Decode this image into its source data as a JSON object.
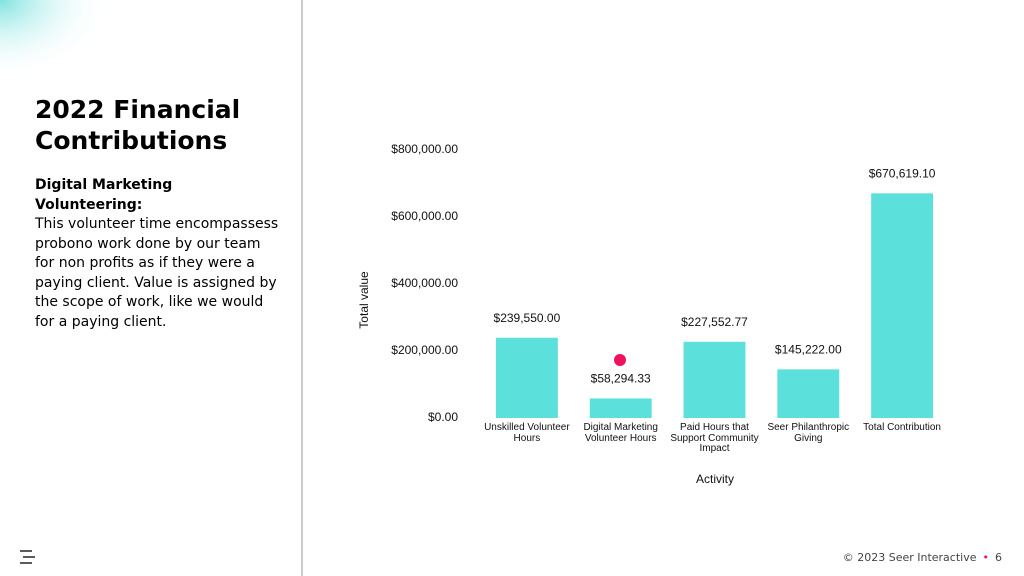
{
  "slide": {
    "title": "2022 Financial Contributions",
    "body_heading": "Digital Marketing Volunteering:",
    "body_text": "This volunteer time encompassess probono work done by our team for non profits as if they were a paying client. Value is assigned by the scope of work, like we would for a paying client.",
    "footer": "© 2023 Seer Interactive",
    "page_number": "6"
  },
  "chart_data": {
    "type": "bar",
    "x_label": "Activity",
    "y_label": "Total value",
    "categories": [
      "Unskilled Volunteer Hours",
      "Digital Marketing Volunteer Hours",
      "Paid Hours that Support Community Impact",
      "Seer Philanthropic Giving",
      "Total Contribution"
    ],
    "values": [
      239550,
      58294.33,
      227552.77,
      145222,
      670619.1
    ],
    "value_labels": [
      "$239,550.00",
      "$58,294.33",
      "$227,552.77",
      "$145,222.00",
      "$670,619.10"
    ],
    "color": "#5ce0dc",
    "ylim": [
      0,
      800000
    ],
    "yticks": [
      {
        "value": 0,
        "label": "$0.00"
      },
      {
        "value": 200000,
        "label": "$200,000.00"
      },
      {
        "value": 400000,
        "label": "$400,000.00"
      },
      {
        "value": 600000,
        "label": "$600,000.00"
      },
      {
        "value": 800000,
        "label": "$800,000.00"
      }
    ],
    "grid": false
  }
}
